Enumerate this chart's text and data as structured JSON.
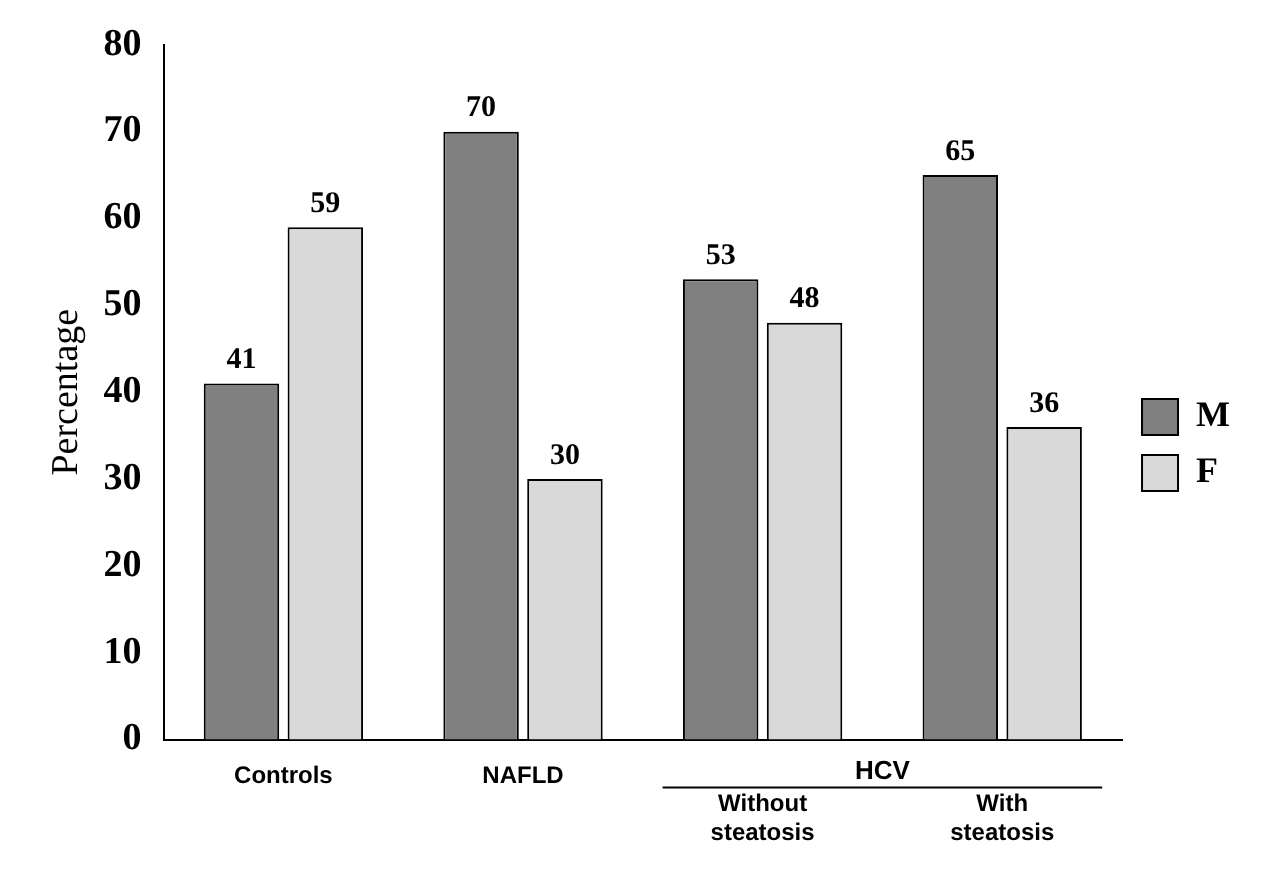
{
  "chart_data": {
    "type": "bar",
    "categories": [
      "Controls",
      "NAFLD",
      "Without steatosis",
      "With steatosis"
    ],
    "series": [
      {
        "name": "M",
        "color": "#808080",
        "values": [
          41,
          70,
          53,
          65
        ]
      },
      {
        "name": "F",
        "color": "#d9d9d9",
        "values": [
          59,
          30,
          48,
          36
        ]
      }
    ],
    "ylabel": "Percentage",
    "ylim": [
      0,
      80
    ],
    "yticks": [
      0,
      10,
      20,
      30,
      40,
      50,
      60,
      70,
      80
    ],
    "data_labels": true,
    "legend": "right",
    "grid": false,
    "annotations": [
      "HCV"
    ]
  }
}
